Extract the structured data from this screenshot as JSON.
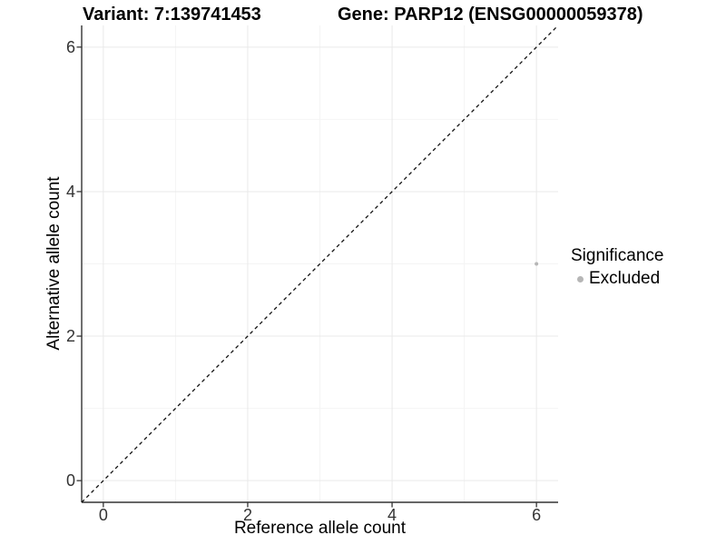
{
  "chart_data": {
    "type": "scatter",
    "title_left": "Variant: 7:139741453",
    "title_right": "Gene: PARP12 (ENSG00000059378)",
    "xlabel": "Reference allele count",
    "ylabel": "Alternative allele count",
    "xlim": [
      -0.3,
      6.3
    ],
    "ylim": [
      -0.3,
      6.3
    ],
    "x_ticks": [
      0,
      2,
      4,
      6
    ],
    "y_ticks": [
      0,
      2,
      4,
      6
    ],
    "x_minor_ticks": [
      1,
      3,
      5
    ],
    "y_minor_ticks": [
      1,
      3,
      5
    ],
    "grid": "major+minor",
    "identity_line": {
      "style": "dashed",
      "equation": "y = x",
      "from": [
        -0.3,
        -0.3
      ],
      "to": [
        6.3,
        6.3
      ]
    },
    "series": [
      {
        "name": "Excluded",
        "color": "#b6b6b6",
        "points": [
          {
            "x": 6,
            "y": 3
          }
        ]
      }
    ],
    "legend": {
      "title": "Significance",
      "position": "right",
      "entries": [
        {
          "label": "Excluded",
          "color": "#b6b6b6",
          "marker": "circle"
        }
      ]
    }
  },
  "colors": {
    "background": "#ffffff",
    "title_text": "#000000",
    "axis_line": "#333333",
    "tick_mark": "#333333",
    "tick_label": "#333333",
    "grid_major": "#e9e9e9",
    "grid_minor": "#f4f4f4",
    "identity_line": "#111111"
  }
}
